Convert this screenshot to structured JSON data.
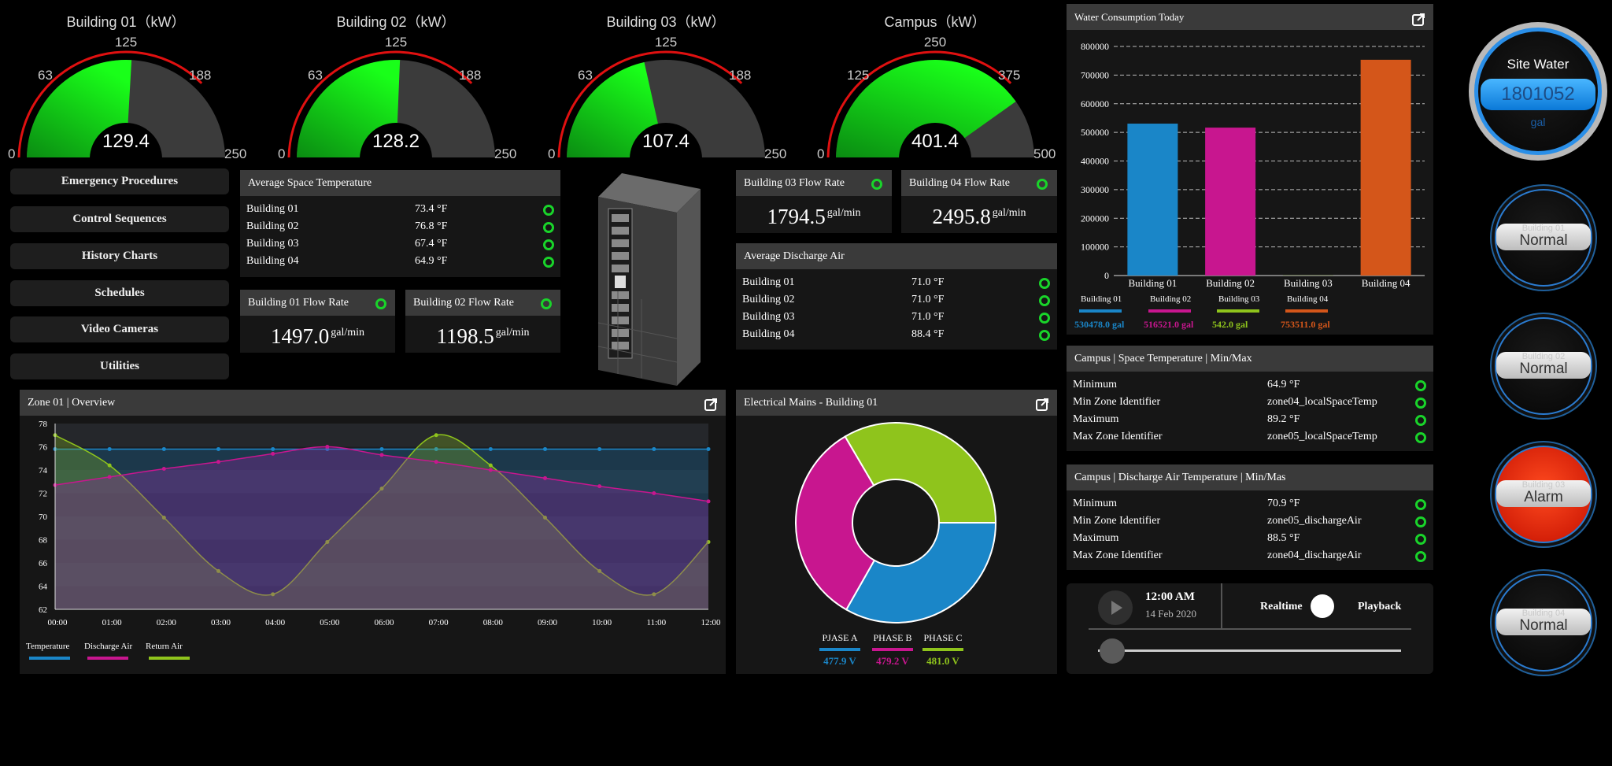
{
  "gauges": [
    {
      "title": "Building 01（kW）",
      "value": "129.4",
      "min": "0",
      "q1": "63",
      "mid": "125",
      "q3": "188",
      "max": "250",
      "fraction": 0.518
    },
    {
      "title": "Building 02（kW）",
      "value": "128.2",
      "min": "0",
      "q1": "63",
      "mid": "125",
      "q3": "188",
      "max": "250",
      "fraction": 0.513
    },
    {
      "title": "Building 03（kW）",
      "value": "107.4",
      "min": "0",
      "q1": "63",
      "mid": "125",
      "q3": "188",
      "max": "250",
      "fraction": 0.43
    },
    {
      "title": "Campus（kW）",
      "value": "401.4",
      "min": "0",
      "q1": "125",
      "mid": "250",
      "q3": "375",
      "max": "500",
      "fraction": 0.803
    }
  ],
  "nav": [
    "Emergency Procedures",
    "Control Sequences",
    "History Charts",
    "Schedules",
    "Video Cameras",
    "Utilities"
  ],
  "avg_space_temp": {
    "title": "Average Space Temperature",
    "rows": [
      {
        "name": "Building 01",
        "value": "73.4 °F"
      },
      {
        "name": "Building 02",
        "value": "76.8 °F"
      },
      {
        "name": "Building 03",
        "value": "67.4 °F"
      },
      {
        "name": "Building 04",
        "value": "64.9 °F"
      }
    ]
  },
  "flow": [
    {
      "title": "Building 01 Flow Rate",
      "value": "1497.0",
      "unit": "gal/min"
    },
    {
      "title": "Building 02 Flow Rate",
      "value": "1198.5",
      "unit": "gal/min"
    },
    {
      "title": "Building 03 Flow Rate",
      "value": "1794.5",
      "unit": "gal/min"
    },
    {
      "title": "Building 04 Flow Rate",
      "value": "2495.8",
      "unit": "gal/min"
    }
  ],
  "avg_discharge": {
    "title": "Average Discharge Air",
    "rows": [
      {
        "name": "Building 01",
        "value": "71.0 °F"
      },
      {
        "name": "Building 02",
        "value": "71.0 °F"
      },
      {
        "name": "Building 03",
        "value": "71.0 °F"
      },
      {
        "name": "Building 04",
        "value": "88.4 °F"
      }
    ]
  },
  "water_panel": {
    "title": "Water Consumption Today",
    "totals": [
      "530478.0 gal",
      "516521.0 gal",
      "542.0 gal",
      "753511.0 gal"
    ]
  },
  "zone_panel": {
    "title": "Zone 01 | Overview"
  },
  "mains_panel": {
    "title": "Electrical Mains - Building 01"
  },
  "campus_space": {
    "title": "Campus | Space Temperature | Min/Max",
    "rows": [
      {
        "name": "Minimum",
        "value": "64.9 °F"
      },
      {
        "name": "Min Zone Identifier",
        "value": "zone04_localSpaceTemp"
      },
      {
        "name": "Maximum",
        "value": "89.2 °F"
      },
      {
        "name": "Max Zone Identifier",
        "value": "zone05_localSpaceTemp"
      }
    ]
  },
  "campus_discharge": {
    "title": "Campus | Discharge Air Temperature | Min/Mas",
    "rows": [
      {
        "name": "Minimum",
        "value": "70.9 °F"
      },
      {
        "name": "Min Zone Identifier",
        "value": "zone05_dischargeAir"
      },
      {
        "name": "Maximum",
        "value": "88.5 °F"
      },
      {
        "name": "Max Zone Identifier",
        "value": "zone04_dischargeAir"
      }
    ]
  },
  "playback": {
    "time": "12:00 AM",
    "date": "14 Feb 2020",
    "realtime": "Realtime",
    "playback": "Playback",
    "slider_fraction": 0.0
  },
  "site_water": {
    "title": "Site Water",
    "value": "1801052",
    "unit": "gal"
  },
  "statuses": [
    {
      "label": "Building 01",
      "state": "Normal",
      "alarm": false
    },
    {
      "label": "Building 02",
      "state": "Normal",
      "alarm": false
    },
    {
      "label": "Building 03",
      "state": "Alarm",
      "alarm": true
    },
    {
      "label": "Building 04",
      "state": "Normal",
      "alarm": false
    }
  ],
  "colors": {
    "blue": "#1a86c8",
    "magenta": "#c8168f",
    "lime": "#8fc41c",
    "orange": "#d4561a",
    "green_ok": "#19d42a",
    "alarm_red": "#e81c00"
  },
  "chart_data": [
    {
      "type": "bar",
      "title": "Water Consumption Today",
      "categories": [
        "Building 01",
        "Building 02",
        "Building 03",
        "Building 04"
      ],
      "values": [
        530478.0,
        516521.0,
        542.0,
        753511.0
      ],
      "ylim": [
        0,
        800000
      ],
      "yticks": [
        "0",
        "100000",
        "200000",
        "300000",
        "400000",
        "500000",
        "600000",
        "700000",
        "800000"
      ],
      "legend": [
        "Building 01",
        "Building 02",
        "Building 03",
        "Building 04"
      ],
      "grid": true
    },
    {
      "type": "area",
      "title": "Zone 01 | Overview",
      "x": [
        "00:00",
        "01:00",
        "02:00",
        "03:00",
        "04:00",
        "05:00",
        "06:00",
        "07:00",
        "08:00",
        "09:00",
        "10:00",
        "11:00",
        "12:00"
      ],
      "ylim": [
        62,
        78
      ],
      "yticks": [
        "62",
        "64",
        "66",
        "68",
        "70",
        "72",
        "74",
        "76",
        "78"
      ],
      "series": [
        {
          "name": "Temperature",
          "values": [
            75.8,
            75.8,
            75.8,
            75.8,
            75.8,
            75.8,
            75.8,
            75.8,
            75.8,
            75.8,
            75.8,
            75.8,
            75.8
          ]
        },
        {
          "name": "Discharge Air",
          "values": [
            72.7,
            73.4,
            74.1,
            74.7,
            75.4,
            76.0,
            75.3,
            74.7,
            74.0,
            73.3,
            72.6,
            72.0,
            71.3
          ]
        },
        {
          "name": "Return Air",
          "values": [
            77.0,
            74.4,
            69.9,
            65.3,
            63.3,
            67.8,
            72.4,
            77.0,
            74.4,
            69.9,
            65.3,
            63.3,
            67.8
          ]
        }
      ],
      "legend_placement": "bottom-left"
    },
    {
      "type": "pie",
      "title": "Electrical Mains - Building 01",
      "categories": [
        "PJASE A",
        "PHASE B",
        "PHASE C"
      ],
      "values": [
        477.9,
        479.2,
        481.0
      ],
      "labels": [
        "477.9 V",
        "479.2 V",
        "481.0 V"
      ],
      "legend_placement": "bottom"
    }
  ]
}
